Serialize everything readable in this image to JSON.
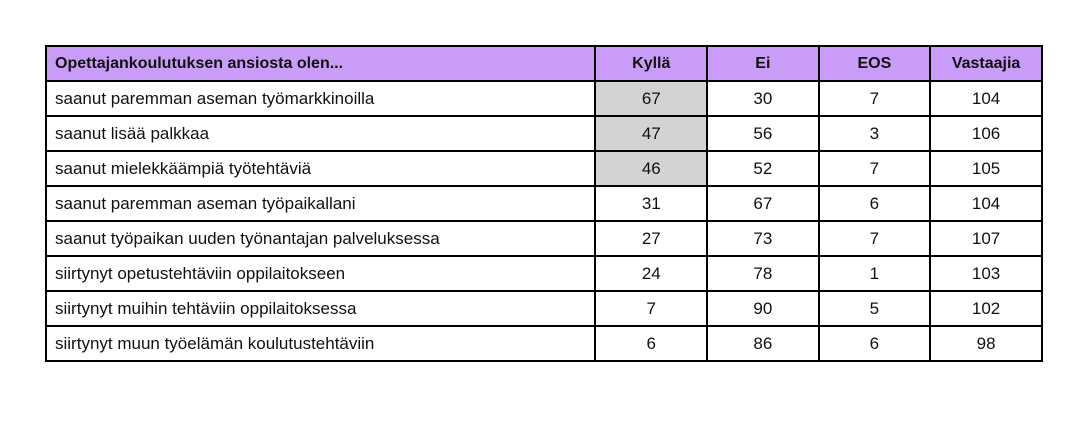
{
  "table": {
    "header": [
      "Opettajankoulutuksen ansiosta olen...",
      "Kyllä",
      "Ei",
      "EOS",
      "Vastaajia"
    ],
    "rows": [
      [
        "saanut paremman aseman työmarkkinoilla",
        67,
        30,
        7,
        104
      ],
      [
        "saanut lisää palkkaa",
        47,
        56,
        3,
        106
      ],
      [
        "saanut mielekkäämpiä työtehtäviä",
        46,
        52,
        7,
        105
      ],
      [
        "saanut paremman aseman työpaikallani",
        31,
        67,
        6,
        104
      ],
      [
        "saanut työpaikan uuden työnantajan palveluksessa",
        27,
        73,
        7,
        107
      ],
      [
        "siirtynyt opetustehtäviin oppilaitokseen",
        24,
        78,
        1,
        103
      ],
      [
        "siirtynyt muihin tehtäviin oppilaitoksessa",
        7,
        90,
        5,
        102
      ],
      [
        "siirtynyt muun työelämän koulutustehtäviin",
        6,
        86,
        6,
        98
      ]
    ]
  }
}
